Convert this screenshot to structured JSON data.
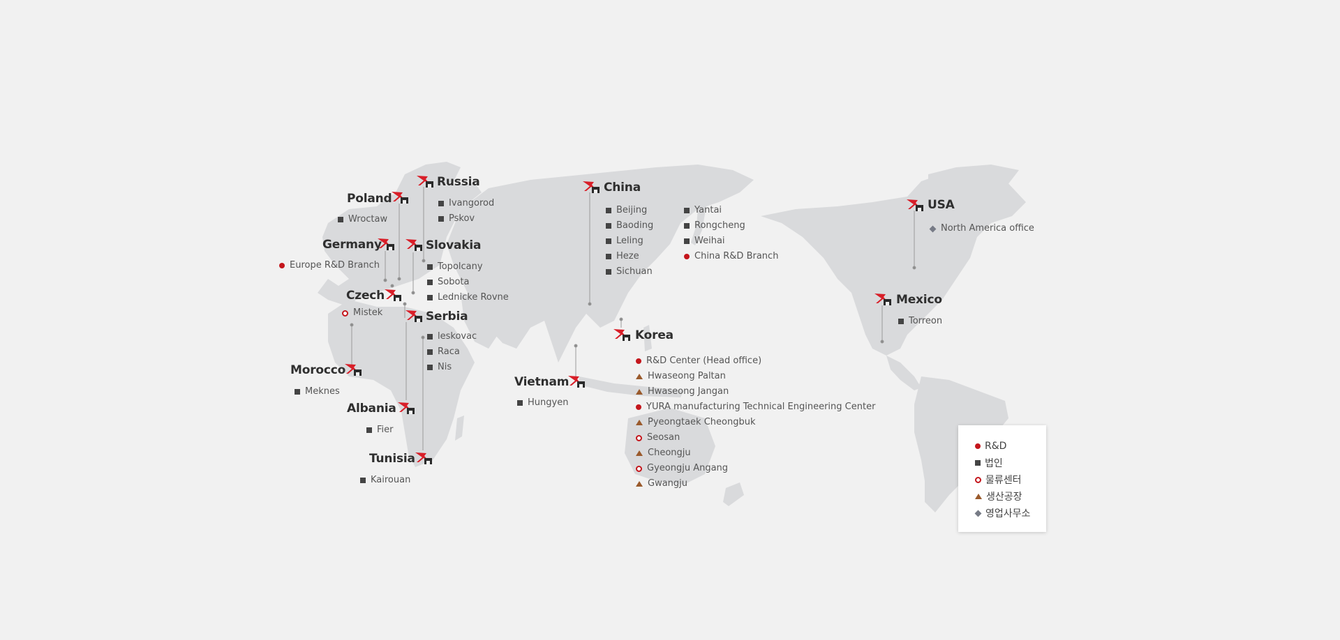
{
  "colors": {
    "background": "#f1f1f1",
    "land": "#d9dadc",
    "rnd": "#c4161c",
    "corporation": "#444444",
    "logistics": "#c4161c",
    "factory": "#9a5a2c",
    "sales": "#777b86",
    "connector": "#9a9a9a"
  },
  "legend": [
    {
      "marker": "red-dot",
      "label": "R&D"
    },
    {
      "marker": "dark-square",
      "label": "법인"
    },
    {
      "marker": "red-ring",
      "label": "물류센터"
    },
    {
      "marker": "brown-triangle",
      "label": "생산공장"
    },
    {
      "marker": "gray-diamond",
      "label": "영업사무소"
    }
  ],
  "countries": {
    "russia": {
      "name": "Russia",
      "sites": [
        {
          "marker": "dark-square",
          "label": "Ivangorod"
        },
        {
          "marker": "dark-square",
          "label": "Pskov"
        }
      ]
    },
    "poland": {
      "name": "Poland",
      "sites": [
        {
          "marker": "dark-square",
          "label": "Wroctaw"
        }
      ]
    },
    "germany": {
      "name": "Germany",
      "sites": [
        {
          "marker": "red-dot",
          "label": "Europe R&D Branch"
        }
      ]
    },
    "slovakia": {
      "name": "Slovakia",
      "sites": [
        {
          "marker": "dark-square",
          "label": "Topolcany"
        },
        {
          "marker": "dark-square",
          "label": "Sobota"
        },
        {
          "marker": "dark-square",
          "label": "Lednicke Rovne"
        }
      ]
    },
    "czech": {
      "name": "Czech",
      "sites": [
        {
          "marker": "red-ring",
          "label": "Mistek"
        }
      ]
    },
    "serbia": {
      "name": "Serbia",
      "sites": [
        {
          "marker": "dark-square",
          "label": "leskovac"
        },
        {
          "marker": "dark-square",
          "label": "Raca"
        },
        {
          "marker": "dark-square",
          "label": "Nis"
        }
      ]
    },
    "morocco": {
      "name": "Morocco",
      "sites": [
        {
          "marker": "dark-square",
          "label": "Meknes"
        }
      ]
    },
    "albania": {
      "name": "Albania",
      "sites": [
        {
          "marker": "dark-square",
          "label": "Fier"
        }
      ]
    },
    "tunisia": {
      "name": "Tunisia",
      "sites": [
        {
          "marker": "dark-square",
          "label": "Kairouan"
        }
      ]
    },
    "china": {
      "name": "China",
      "sites": [
        {
          "marker": "dark-square",
          "label": "Beijing"
        },
        {
          "marker": "dark-square",
          "label": "Baoding"
        },
        {
          "marker": "dark-square",
          "label": "Leling"
        },
        {
          "marker": "dark-square",
          "label": "Heze"
        },
        {
          "marker": "dark-square",
          "label": "Sichuan"
        },
        {
          "marker": "dark-square",
          "label": "Yantai"
        },
        {
          "marker": "dark-square",
          "label": "Rongcheng"
        },
        {
          "marker": "dark-square",
          "label": "Weihai"
        },
        {
          "marker": "red-dot",
          "label": "China R&D Branch"
        }
      ]
    },
    "vietnam": {
      "name": "Vietnam",
      "sites": [
        {
          "marker": "dark-square",
          "label": "Hungyen"
        }
      ]
    },
    "korea": {
      "name": "Korea",
      "sites": [
        {
          "marker": "red-dot",
          "label": "R&D Center (Head office)"
        },
        {
          "marker": "brown-triangle",
          "label": "Hwaseong Paltan"
        },
        {
          "marker": "brown-triangle",
          "label": "Hwaseong Jangan"
        },
        {
          "marker": "red-dot",
          "label": "YURA manufacturing Technical Engineering Center"
        },
        {
          "marker": "brown-triangle",
          "label": "Pyeongtaek Cheongbuk"
        },
        {
          "marker": "red-ring",
          "label": "Seosan"
        },
        {
          "marker": "brown-triangle",
          "label": "Cheongju"
        },
        {
          "marker": "red-ring",
          "label": "Gyeongju Angang"
        },
        {
          "marker": "brown-triangle",
          "label": "Gwangju"
        }
      ]
    },
    "usa": {
      "name": "USA",
      "sites": [
        {
          "marker": "gray-diamond",
          "label": "North America office"
        }
      ]
    },
    "mexico": {
      "name": "Mexico",
      "sites": [
        {
          "marker": "dark-square",
          "label": "Torreon"
        }
      ]
    }
  }
}
